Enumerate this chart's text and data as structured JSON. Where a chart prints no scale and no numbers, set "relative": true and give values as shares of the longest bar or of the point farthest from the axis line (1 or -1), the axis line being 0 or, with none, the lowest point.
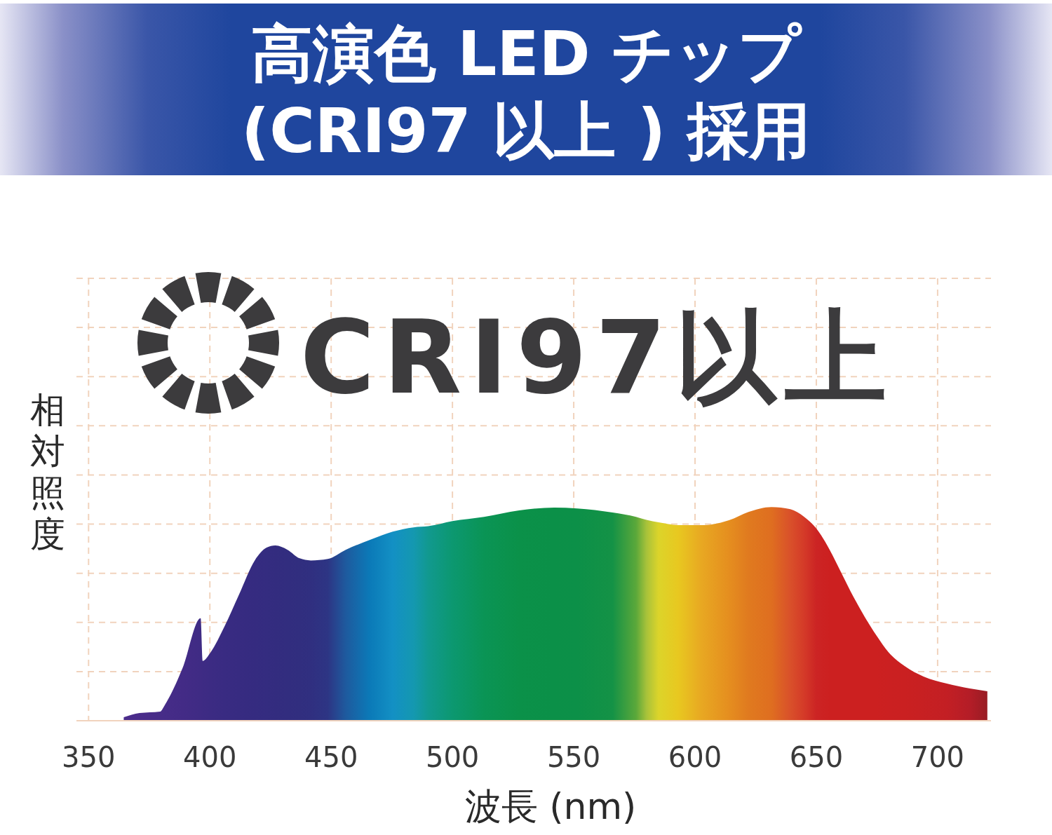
{
  "chart_data": {
    "type": "area",
    "title": "高演色 LED チップ\n(CRI97 以上 ) 採用",
    "xlabel": "波長 (nm)",
    "ylabel": "相対照度",
    "annotations": [
      "CRI97以上"
    ],
    "x": [
      364.5,
      371,
      379.5,
      381.5,
      388.7,
      396.2,
      397,
      400.3,
      406,
      412,
      418.5,
      423.4,
      427,
      432,
      437,
      441.6,
      448.6,
      456,
      466,
      475.4,
      484,
      490,
      500,
      513,
      527.5,
      542,
      551.4,
      566,
      575.7,
      580,
      585,
      593,
      602.6,
      614,
      622,
      631.5,
      639.3,
      645,
      650,
      655.5,
      660.4,
      665.3,
      670,
      674.9,
      679.8,
      686.4,
      694.2,
      703.8,
      713.3,
      720.5
    ],
    "values": [
      0.016,
      0.036,
      0.043,
      0.075,
      0.245,
      0.48,
      0.28,
      0.32,
      0.44,
      0.59,
      0.75,
      0.81,
      0.82,
      0.8,
      0.76,
      0.75,
      0.757,
      0.8,
      0.846,
      0.885,
      0.905,
      0.91,
      0.934,
      0.954,
      0.984,
      0.997,
      0.993,
      0.974,
      0.954,
      0.94,
      0.928,
      0.915,
      0.915,
      0.938,
      0.977,
      1,
      0.99,
      0.954,
      0.9,
      0.8,
      0.69,
      0.58,
      0.485,
      0.397,
      0.32,
      0.256,
      0.207,
      0.174,
      0.151,
      0.138
    ],
    "colors": [
      "#4b2c8c",
      "#4a2c8a",
      "#472c88",
      "#462c88",
      "#432b86",
      "#3f2b84",
      "#3e2b84",
      "#3c2b83",
      "#392b82",
      "#372b81",
      "#352b80",
      "#342c80",
      "#332c7f",
      "#322d7f",
      "#312e7f",
      "#302f80",
      "#2d3584",
      "#1e5a9e",
      "#0b7ab8",
      "#1390c4",
      "#1498b0",
      "#11998f",
      "#0c9870",
      "#0a9455",
      "#0b9149",
      "#0b9048",
      "#0c9048",
      "#149246",
      "#5ba83a",
      "#a8c23a",
      "#dcd42a",
      "#e8c820",
      "#e8a822",
      "#e58e1f",
      "#e07a1f",
      "#df6e20",
      "#d9502a",
      "#d43a28",
      "#cc2424",
      "#cc2020",
      "#cc2020",
      "#cc2020",
      "#cc2020",
      "#cc2020",
      "#cb2021",
      "#ca2021",
      "#c72022",
      "#c31f24",
      "#b41d27",
      "#981c24"
    ],
    "relative": true,
    "xlim": [
      345,
      722
    ],
    "xticks": [
      350,
      400,
      450,
      500,
      550,
      600,
      650,
      700
    ],
    "grid": true
  }
}
